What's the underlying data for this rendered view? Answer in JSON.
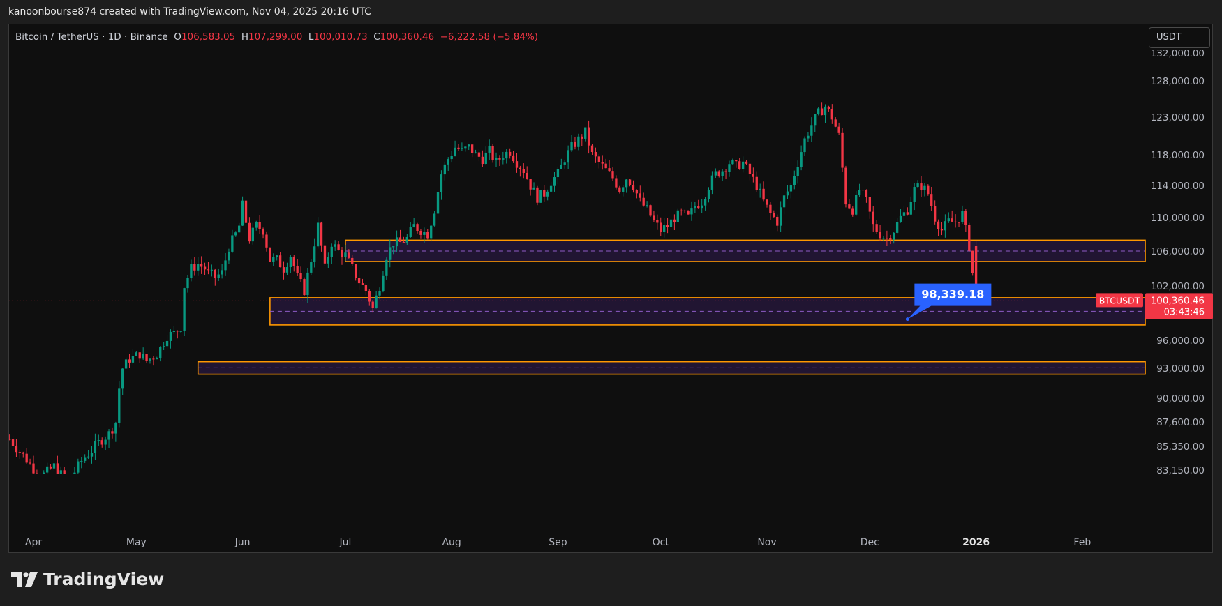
{
  "caption": "kanoonbourse874 created with TradingView.com, Nov 04, 2025 20:16 UTC",
  "legend": {
    "symbol": "Bitcoin / TetherUS · 1D · Binance",
    "o_label": "O",
    "o_value": "106,583.05",
    "h_label": "H",
    "h_value": "107,299.00",
    "l_label": "L",
    "l_value": "100,010.73",
    "c_label": "C",
    "c_value": "100,360.46",
    "change": "−6,222.58 (−5.84%)"
  },
  "currency": "USDT",
  "brand": "TradingView",
  "colors": {
    "up": "#089981",
    "down": "#f23645",
    "zone_border": "#ff9800",
    "zone_fill": "#241638",
    "zone_mid": "#8e5cc6",
    "callout": "#2962ff",
    "price_tag": "#f23645"
  },
  "chart_data": {
    "type": "candlestick",
    "price_scale": {
      "ticks": [
        {
          "value": 132000,
          "label": "132,000.00"
        },
        {
          "value": 128000,
          "label": "128,000.00"
        },
        {
          "value": 123000,
          "label": "123,000.00"
        },
        {
          "value": 118000,
          "label": "118,000.00"
        },
        {
          "value": 114000,
          "label": "114,000.00"
        },
        {
          "value": 110000,
          "label": "110,000.00"
        },
        {
          "value": 106000,
          "label": "106,000.00"
        },
        {
          "value": 102000,
          "label": "102,000.00"
        },
        {
          "value": 96000,
          "label": "96,000.00"
        },
        {
          "value": 93000,
          "label": "93,000.00"
        },
        {
          "value": 90000,
          "label": "90,000.00"
        },
        {
          "value": 87600,
          "label": "87,600.00"
        },
        {
          "value": 85350,
          "label": "85,350.00"
        },
        {
          "value": 83150,
          "label": "83,150.00"
        }
      ]
    },
    "time_axis": {
      "labels": [
        {
          "label": "Apr",
          "day": 0,
          "bold": false
        },
        {
          "label": "May",
          "day": 30,
          "bold": false
        },
        {
          "label": "Jun",
          "day": 61,
          "bold": false
        },
        {
          "label": "Jul",
          "day": 91,
          "bold": false
        },
        {
          "label": "Aug",
          "day": 122,
          "bold": false
        },
        {
          "label": "Sep",
          "day": 153,
          "bold": false
        },
        {
          "label": "Oct",
          "day": 183,
          "bold": false
        },
        {
          "label": "Nov",
          "day": 214,
          "bold": false
        },
        {
          "label": "Dec",
          "day": 244,
          "bold": false
        },
        {
          "label": "2026",
          "day": 275,
          "bold": true
        },
        {
          "label": "Feb",
          "day": 306,
          "bold": false
        }
      ]
    },
    "close_path": [
      [
        -7,
        86000
      ],
      [
        -3,
        84500
      ],
      [
        2,
        82500
      ],
      [
        6,
        83500
      ],
      [
        10,
        82000
      ],
      [
        14,
        84000
      ],
      [
        17,
        85000
      ],
      [
        20,
        86000
      ],
      [
        22,
        86500
      ],
      [
        24,
        87600
      ],
      [
        25,
        91000
      ],
      [
        26,
        93000
      ],
      [
        28,
        94000
      ],
      [
        31,
        94500
      ],
      [
        33,
        93800
      ],
      [
        36,
        94500
      ],
      [
        39,
        96500
      ],
      [
        41,
        96800
      ],
      [
        43,
        97500
      ],
      [
        44,
        102000
      ],
      [
        46,
        104000
      ],
      [
        48,
        104500
      ],
      [
        50,
        104000
      ],
      [
        51,
        103500
      ],
      [
        53,
        103000
      ],
      [
        55,
        103500
      ],
      [
        57,
        106500
      ],
      [
        59,
        108000
      ],
      [
        60,
        109000
      ],
      [
        61,
        111500
      ],
      [
        63,
        107500
      ],
      [
        65,
        109000
      ],
      [
        67,
        108500
      ],
      [
        69,
        105000
      ],
      [
        71,
        105000
      ],
      [
        73,
        104000
      ],
      [
        75,
        105500
      ],
      [
        77,
        103000
      ],
      [
        79,
        101500
      ],
      [
        81,
        105000
      ],
      [
        83,
        109000
      ],
      [
        85,
        104000
      ],
      [
        87,
        107000
      ],
      [
        89,
        106000
      ],
      [
        91,
        105500
      ],
      [
        93,
        104000
      ],
      [
        95,
        102500
      ],
      [
        97,
        101500
      ],
      [
        99,
        99500
      ],
      [
        101,
        102000
      ],
      [
        103,
        105500
      ],
      [
        105,
        107000
      ],
      [
        107,
        107000
      ],
      [
        109,
        107500
      ],
      [
        111,
        109000
      ],
      [
        113,
        108500
      ],
      [
        115,
        108000
      ],
      [
        117,
        111000
      ],
      [
        119,
        115500
      ],
      [
        121,
        117500
      ],
      [
        123,
        119000
      ],
      [
        125,
        118500
      ],
      [
        127,
        119000
      ],
      [
        129,
        118000
      ],
      [
        131,
        117500
      ],
      [
        133,
        118500
      ],
      [
        135,
        117000
      ],
      [
        137,
        118000
      ],
      [
        139,
        118500
      ],
      [
        141,
        117000
      ],
      [
        143,
        116000
      ],
      [
        145,
        114000
      ],
      [
        147,
        112500
      ],
      [
        149,
        113000
      ],
      [
        151,
        114500
      ],
      [
        153,
        115500
      ],
      [
        155,
        117500
      ],
      [
        157,
        119000
      ],
      [
        159,
        120000
      ],
      [
        161,
        121000
      ],
      [
        163,
        118000
      ],
      [
        165,
        117000
      ],
      [
        167,
        116000
      ],
      [
        169,
        115000
      ],
      [
        171,
        113500
      ],
      [
        173,
        115000
      ],
      [
        175,
        114000
      ],
      [
        177,
        112000
      ],
      [
        179,
        111000
      ],
      [
        181,
        109500
      ],
      [
        183,
        108500
      ],
      [
        185,
        109000
      ],
      [
        187,
        110000
      ],
      [
        189,
        110500
      ],
      [
        191,
        110000
      ],
      [
        193,
        111500
      ],
      [
        195,
        112000
      ],
      [
        197,
        114000
      ],
      [
        199,
        115500
      ],
      [
        201,
        116000
      ],
      [
        203,
        117000
      ],
      [
        205,
        116500
      ],
      [
        207,
        117000
      ],
      [
        209,
        115500
      ],
      [
        211,
        114000
      ],
      [
        213,
        112000
      ],
      [
        215,
        110500
      ],
      [
        217,
        109500
      ],
      [
        219,
        112500
      ],
      [
        221,
        114000
      ],
      [
        223,
        117000
      ],
      [
        225,
        120000
      ],
      [
        227,
        122000
      ],
      [
        229,
        123500
      ],
      [
        231,
        124500
      ],
      [
        233,
        123000
      ],
      [
        235,
        120500
      ],
      [
        237,
        112000
      ],
      [
        239,
        111000
      ],
      [
        241,
        113500
      ],
      [
        243,
        112000
      ],
      [
        245,
        109000
      ],
      [
        247,
        108000
      ],
      [
        249,
        107500
      ],
      [
        251,
        108500
      ],
      [
        253,
        110000
      ],
      [
        255,
        111000
      ],
      [
        257,
        113500
      ],
      [
        259,
        114000
      ],
      [
        261,
        113000
      ],
      [
        263,
        110000
      ],
      [
        265,
        108500
      ],
      [
        267,
        109500
      ],
      [
        269,
        109500
      ],
      [
        271,
        110500
      ],
      [
        273,
        106583
      ],
      [
        275,
        100360
      ]
    ],
    "zones": [
      {
        "from_day": 91,
        "to_day": 324,
        "top": 107300,
        "bottom": 104800,
        "mid": 106000
      },
      {
        "from_day": 69,
        "to_day": 324,
        "top": 100700,
        "bottom": 97700,
        "mid": 99200
      },
      {
        "from_day": 48,
        "to_day": 324,
        "top": 93700,
        "bottom": 92400,
        "mid": 93050
      }
    ],
    "last_bar": {
      "open": 106583.05,
      "high": 107299.0,
      "low": 100010.73,
      "close": 100360.46
    },
    "current_price": {
      "symbol": "BTCUSDT",
      "label": "100,360.46",
      "countdown": "03:43:46"
    },
    "callout": {
      "label": "98,339.18",
      "value": 98339.18,
      "day": 255
    }
  }
}
